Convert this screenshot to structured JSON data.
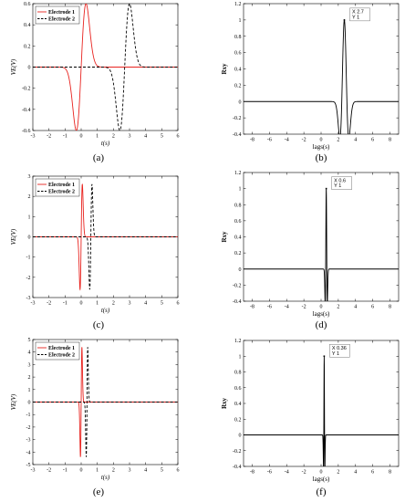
{
  "chart_data": [
    {
      "panel": "a",
      "caption": "(a)",
      "type": "line",
      "xlabel": "t(s)",
      "ylabel": "VE(V)",
      "xlim": [
        -3,
        6
      ],
      "ylim": [
        -0.6,
        0.6
      ],
      "xticks": [
        "-3",
        "-2",
        "-1",
        "0",
        "1",
        "2",
        "3",
        "4",
        "5",
        "6"
      ],
      "yticks": [
        "-0.6",
        "-0.4",
        "-0.2",
        "0",
        "0.2",
        "0.4",
        "0.6"
      ],
      "legend": "top-left",
      "series": [
        {
          "name": "Electrode 1",
          "color": "#e8231f",
          "style": "solid",
          "center": 0.0,
          "amp": 0.6,
          "width": 0.3,
          "x": [
            -3,
            -1,
            -0.5,
            -0.2,
            0,
            0.2,
            0.5,
            1,
            2,
            4,
            6
          ],
          "values": [
            0,
            -0.02,
            -0.3,
            -0.58,
            -0.05,
            0.58,
            0.35,
            0.1,
            0.01,
            0,
            0
          ]
        },
        {
          "name": "Electrode 2",
          "color": "#000000",
          "style": "dashed",
          "center": 2.7,
          "amp": 0.6,
          "width": 0.3,
          "x": [
            -3,
            0,
            1.5,
            2.2,
            2.5,
            2.7,
            2.9,
            3.2,
            3.7,
            4.5,
            6
          ],
          "values": [
            0,
            0,
            -0.05,
            -0.4,
            -0.6,
            -0.05,
            0.58,
            0.4,
            0.08,
            0.01,
            0
          ]
        }
      ]
    },
    {
      "panel": "b",
      "caption": "(b)",
      "type": "line",
      "xlabel": "lags(s)",
      "ylabel": "Rxy",
      "xlim": [
        -9,
        9
      ],
      "ylim": [
        -0.4,
        1.2
      ],
      "xticks": [
        "-8",
        "-6",
        "-4",
        "-2",
        "0",
        "2",
        "4",
        "6",
        "8"
      ],
      "yticks": [
        "-0.4",
        "-0.2",
        "0",
        "0.2",
        "0.4",
        "0.6",
        "0.8",
        "1",
        "1.2"
      ],
      "peak": 2.7,
      "width": 0.3,
      "datatip": {
        "x_text": "X 2.7",
        "y_text": "Y 1"
      },
      "series": [
        {
          "color": "#000000",
          "x": [
            -9,
            1.7,
            2.2,
            2.7,
            3.2,
            3.7,
            9
          ],
          "values": [
            0,
            -0.02,
            -0.28,
            1,
            -0.28,
            -0.02,
            0
          ]
        }
      ]
    },
    {
      "panel": "c",
      "caption": "(c)",
      "type": "line",
      "xlabel": "t(s)",
      "ylabel": "VE(V)",
      "xlim": [
        -3,
        6
      ],
      "ylim": [
        -3,
        3
      ],
      "xticks": [
        "-3",
        "-2",
        "-1",
        "0",
        "1",
        "2",
        "3",
        "4",
        "5",
        "6"
      ],
      "yticks": [
        "-3",
        "-2",
        "-1",
        "0",
        "1",
        "2",
        "3"
      ],
      "legend": "top-left",
      "series": [
        {
          "name": "Electrode 1",
          "color": "#e8231f",
          "style": "solid",
          "center": 0.0,
          "amp": 2.6,
          "width": 0.07,
          "x": [
            -3,
            -0.1,
            -0.05,
            0,
            0.05,
            0.1,
            6
          ],
          "values": [
            0,
            -1.5,
            -2.6,
            0,
            2.6,
            1.2,
            0
          ]
        },
        {
          "name": "Electrode 2",
          "color": "#000000",
          "style": "dashed",
          "center": 0.6,
          "amp": 2.6,
          "width": 0.07,
          "x": [
            -3,
            0.5,
            0.55,
            0.6,
            0.65,
            0.7,
            6
          ],
          "values": [
            0,
            -1.5,
            -2.6,
            0,
            2.6,
            1.2,
            0
          ]
        }
      ]
    },
    {
      "panel": "d",
      "caption": "(d)",
      "type": "line",
      "xlabel": "lags(s)",
      "ylabel": "Rxy",
      "xlim": [
        -9,
        9
      ],
      "ylim": [
        -0.4,
        1.2
      ],
      "xticks": [
        "-8",
        "-6",
        "-4",
        "-2",
        "0",
        "2",
        "4",
        "6",
        "8"
      ],
      "yticks": [
        "-0.4",
        "-0.2",
        "0",
        "0.2",
        "0.4",
        "0.6",
        "0.8",
        "1",
        "1.2"
      ],
      "peak": 0.6,
      "width": 0.07,
      "datatip": {
        "x_text": "X 0.6",
        "y_text": "Y 1"
      },
      "series": [
        {
          "color": "#000000",
          "x": [
            -9,
            0.4,
            0.5,
            0.6,
            0.7,
            0.8,
            9
          ],
          "values": [
            0,
            -0.05,
            -0.28,
            1,
            -0.28,
            -0.05,
            0
          ]
        }
      ]
    },
    {
      "panel": "e",
      "caption": "(e)",
      "type": "line",
      "xlabel": "t(s)",
      "ylabel": "VE(V)",
      "xlim": [
        -3,
        6
      ],
      "ylim": [
        -5,
        5
      ],
      "xticks": [
        "-3",
        "-2",
        "-1",
        "0",
        "1",
        "2",
        "3",
        "4",
        "5",
        "6"
      ],
      "yticks": [
        "-5",
        "-4",
        "-3",
        "-2",
        "-1",
        "0",
        "1",
        "2",
        "3",
        "4",
        "5"
      ],
      "legend": "top-left",
      "series": [
        {
          "name": "Electrode 1",
          "color": "#e8231f",
          "style": "solid",
          "center": 0.0,
          "amp": 4.4,
          "width": 0.045,
          "x": [
            -3,
            -0.07,
            -0.03,
            0,
            0.03,
            0.07,
            6
          ],
          "values": [
            0,
            -2.5,
            -4.4,
            0,
            4.4,
            2,
            0
          ]
        },
        {
          "name": "Electrode 2",
          "color": "#000000",
          "style": "dashed",
          "center": 0.36,
          "amp": 4.4,
          "width": 0.045,
          "x": [
            -3,
            0.29,
            0.33,
            0.36,
            0.39,
            0.43,
            6
          ],
          "values": [
            0,
            -2.5,
            -4.4,
            0,
            4.4,
            2,
            0
          ]
        }
      ]
    },
    {
      "panel": "f",
      "caption": "(f)",
      "type": "line",
      "xlabel": "lags(s)",
      "ylabel": "Rxy",
      "xlim": [
        -9,
        9
      ],
      "ylim": [
        -0.4,
        1.2
      ],
      "xticks": [
        "-8",
        "-6",
        "-4",
        "-2",
        "0",
        "2",
        "4",
        "6",
        "8"
      ],
      "yticks": [
        "-0.4",
        "-0.2",
        "0",
        "0.2",
        "0.4",
        "0.6",
        "0.8",
        "1",
        "1.2"
      ],
      "peak": 0.36,
      "width": 0.045,
      "datatip": {
        "x_text": "X 0.36",
        "y_text": "Y 1"
      },
      "series": [
        {
          "color": "#000000",
          "x": [
            -9,
            0.25,
            0.3,
            0.36,
            0.42,
            0.47,
            9
          ],
          "values": [
            0,
            -0.05,
            -0.28,
            1,
            -0.28,
            -0.05,
            0
          ]
        }
      ]
    }
  ]
}
